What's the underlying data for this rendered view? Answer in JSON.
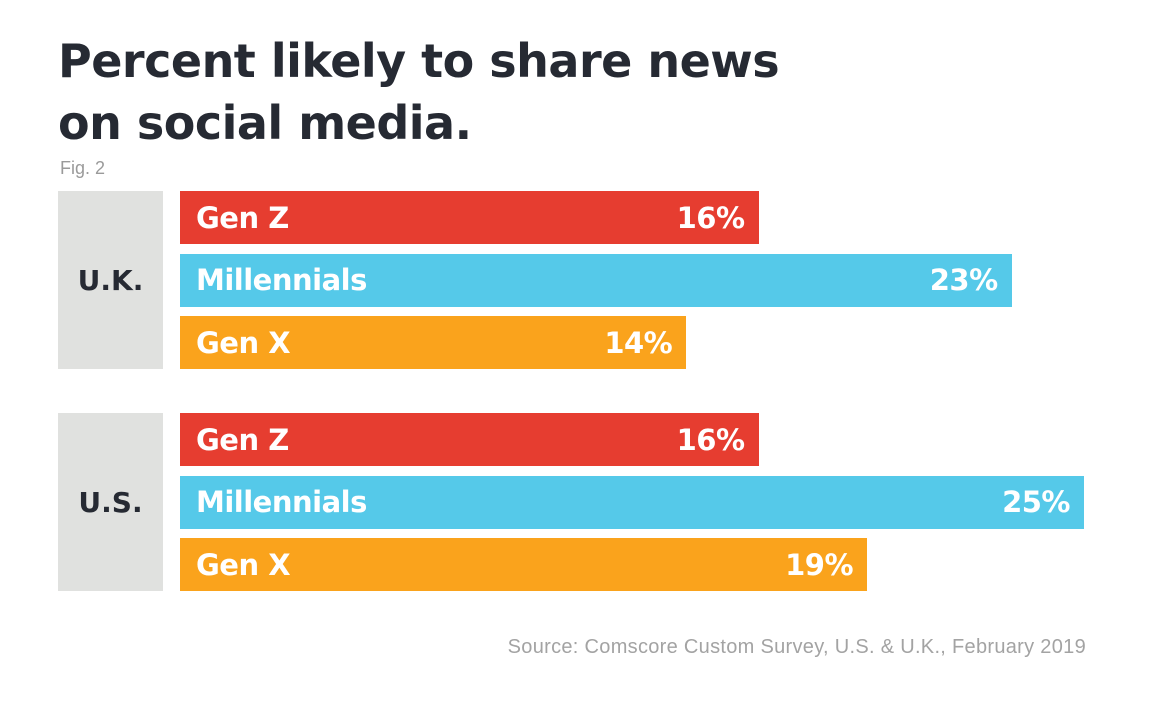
{
  "chart_data": {
    "type": "bar",
    "orientation": "horizontal",
    "title": "Percent likely to share news on social media.",
    "subtitle": "Fig. 2",
    "source": "Source: Comscore Custom Survey, U.S. & U.K., February 2019",
    "unit": "%",
    "xlim": [
      0,
      25
    ],
    "grid": false,
    "colors": {
      "Gen Z": "#e63d30",
      "Millennials": "#55c9e9",
      "Gen X": "#faa31c",
      "group_box": "#e0e1df",
      "text": "#262a33"
    },
    "groups": [
      {
        "label": "U.K.",
        "bars": [
          {
            "name": "Gen Z",
            "value": 16,
            "label": "16%"
          },
          {
            "name": "Millennials",
            "value": 23,
            "label": "23%"
          },
          {
            "name": "Gen X",
            "value": 14,
            "label": "14%"
          }
        ]
      },
      {
        "label": "U.S.",
        "bars": [
          {
            "name": "Gen Z",
            "value": 16,
            "label": "16%"
          },
          {
            "name": "Millennials",
            "value": 25,
            "label": "25%"
          },
          {
            "name": "Gen X",
            "value": 19,
            "label": "19%"
          }
        ]
      }
    ]
  }
}
